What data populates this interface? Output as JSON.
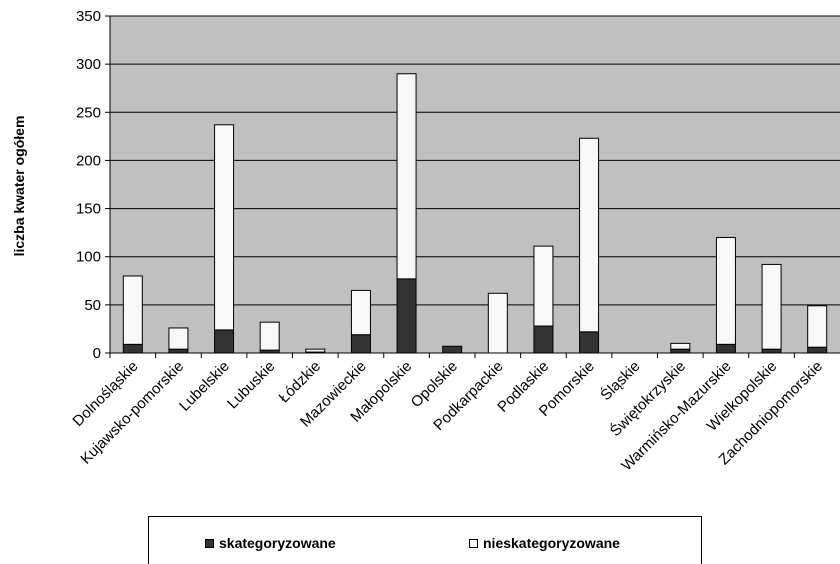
{
  "chart_data": {
    "type": "bar",
    "stacked": true,
    "ylabel": "liczba kwater ogółem",
    "ylim": [
      0,
      350
    ],
    "yticks": [
      0,
      50,
      100,
      150,
      200,
      250,
      300,
      350
    ],
    "grid": true,
    "legend_position": "bottom",
    "categories": [
      "Dolnośląskie",
      "Kujawsko-pomorskie",
      "Lubelskie",
      "Lubuskie",
      "Łódzkie",
      "Mazowieckie",
      "Małopolskie",
      "Opolskie",
      "Podkarpackie",
      "Podlaskie",
      "Pomorskie",
      "Śląskie",
      "Świętokrzyskie",
      "Warmińsko-Mazurskie",
      "Wielkopolskie",
      "Zachodniopomorskie"
    ],
    "series": [
      {
        "name": "skategoryzowane",
        "color": "#333333",
        "values": [
          9,
          4,
          24,
          3,
          1,
          19,
          77,
          7,
          0,
          28,
          22,
          0,
          4,
          9,
          4,
          6
        ]
      },
      {
        "name": "nieskategoryzowane",
        "color": "#f8f8f8",
        "values": [
          71,
          22,
          213,
          29,
          3,
          46,
          213,
          0,
          62,
          83,
          201,
          0,
          6,
          111,
          88,
          43
        ]
      }
    ],
    "colors": {
      "plot_background": "#c0c0c0",
      "gridline": "#000000"
    }
  },
  "legend": {
    "items": [
      {
        "label": "skategoryzowane",
        "color": "#333333"
      },
      {
        "label": "nieskategoryzowane",
        "color": "#f8f8f8"
      }
    ]
  }
}
